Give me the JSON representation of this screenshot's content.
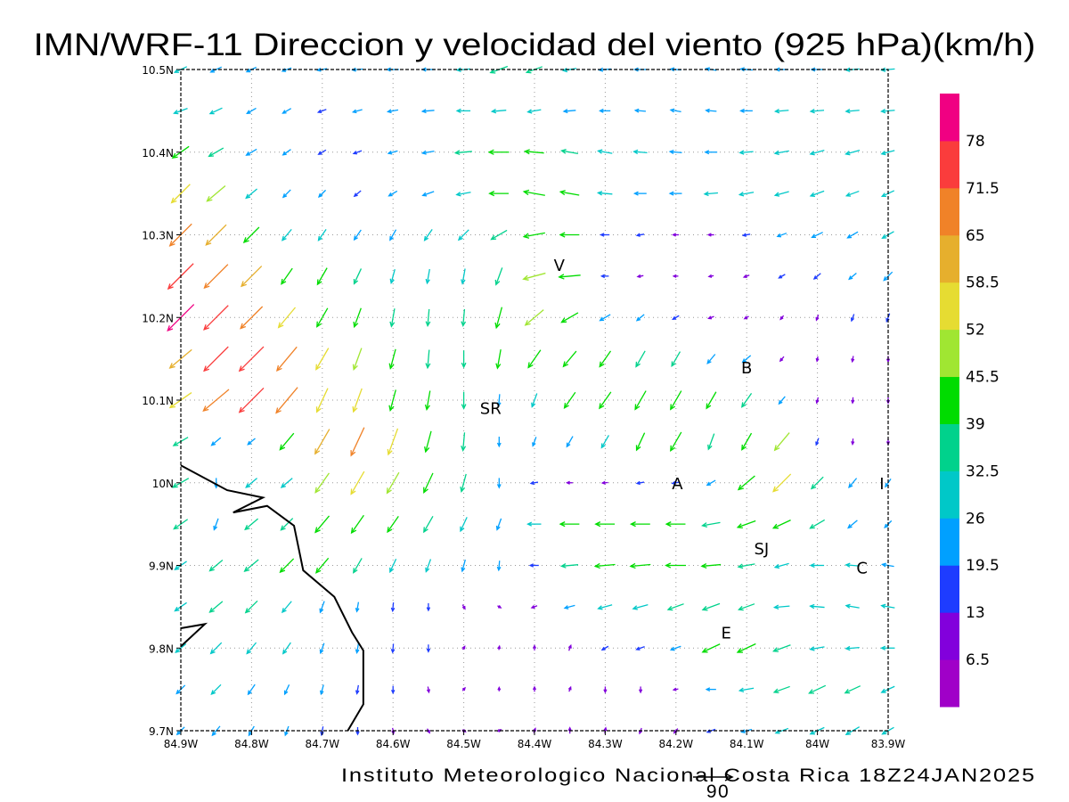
{
  "chart_data": {
    "type": "vector-field",
    "title": "IMN/WRF-11 Direccion y velocidad del viento (925 hPa)(km/h)",
    "credit": "Instituto Meteorologico Nacional Costa Rica  18Z24JAN2025",
    "reference_vector": {
      "value": 90,
      "label": "90"
    },
    "units": "km/h",
    "xlim": [
      -84.9,
      -83.9
    ],
    "ylim": [
      9.7,
      10.5
    ],
    "grid": true,
    "x_ticks": [
      {
        "value": -84.9,
        "label": "84.9W"
      },
      {
        "value": -84.8,
        "label": "84.8W"
      },
      {
        "value": -84.7,
        "label": "84.7W"
      },
      {
        "value": -84.6,
        "label": "84.6W"
      },
      {
        "value": -84.5,
        "label": "84.5W"
      },
      {
        "value": -84.4,
        "label": "84.4W"
      },
      {
        "value": -84.3,
        "label": "84.3W"
      },
      {
        "value": -84.2,
        "label": "84.2W"
      },
      {
        "value": -84.1,
        "label": "84.1W"
      },
      {
        "value": -84.0,
        "label": "84W"
      },
      {
        "value": -83.9,
        "label": "83.9W"
      }
    ],
    "y_ticks": [
      {
        "value": 10.5,
        "label": "10.5N"
      },
      {
        "value": 10.4,
        "label": "10.4N"
      },
      {
        "value": 10.3,
        "label": "10.3N"
      },
      {
        "value": 10.2,
        "label": "10.2N"
      },
      {
        "value": 10.1,
        "label": "10.1N"
      },
      {
        "value": 10.0,
        "label": "10N"
      },
      {
        "value": 9.9,
        "label": "9.9N"
      },
      {
        "value": 9.8,
        "label": "9.8N"
      },
      {
        "value": 9.7,
        "label": "9.7N"
      }
    ],
    "colorbar": {
      "colors": [
        "#a000c8",
        "#8200dc",
        "#1e3cff",
        "#00a0ff",
        "#00c8c8",
        "#00d28c",
        "#00dc00",
        "#a0e632",
        "#e6dc32",
        "#e6af2d",
        "#f08228",
        "#fa3c3c",
        "#f00082"
      ],
      "levels": [
        "6.5",
        "13",
        "19.5",
        "26",
        "32.5",
        "39",
        "45.5",
        "52",
        "58.5",
        "65",
        "71.5",
        "78"
      ]
    },
    "places": [
      {
        "label": "V",
        "lon": -84.365,
        "lat": 10.264
      },
      {
        "label": "SR",
        "lon": -84.462,
        "lat": 10.091
      },
      {
        "label": "B",
        "lon": -84.1,
        "lat": 10.14
      },
      {
        "label": "A",
        "lon": -84.198,
        "lat": 10.0
      },
      {
        "label": "I",
        "lon": -83.909,
        "lat": 10.0
      },
      {
        "label": "SJ",
        "lon": -84.079,
        "lat": 9.921
      },
      {
        "label": "C",
        "lon": -83.937,
        "lat": 9.898
      },
      {
        "label": "E",
        "lon": -84.129,
        "lat": 9.819
      }
    ],
    "coastline": [
      [
        [
          -84.9,
          10.021
        ],
        [
          -84.8345,
          9.991
        ],
        [
          -84.784,
          9.982
        ],
        [
          -84.826,
          9.964
        ],
        [
          -84.778,
          9.972
        ],
        [
          -84.74,
          9.948
        ],
        [
          -84.727,
          9.894
        ],
        [
          -84.683,
          9.862
        ],
        [
          -84.658,
          9.819
        ],
        [
          -84.642,
          9.797
        ],
        [
          -84.642,
          9.732
        ],
        [
          -84.664,
          9.7
        ]
      ],
      [
        [
          -84.9,
          9.824
        ],
        [
          -84.866,
          9.829
        ],
        [
          -84.9,
          9.802
        ]
      ]
    ],
    "field": {
      "lon_start": -84.9,
      "lon_step": 0.05,
      "lats": [
        10.5,
        10.45,
        10.4,
        10.35,
        10.3,
        10.25,
        10.2,
        10.15,
        10.1,
        10.05,
        10.0,
        9.95,
        9.9,
        9.85,
        9.8,
        9.75,
        9.7
      ],
      "speed": [
        [
          28,
          25,
          22,
          20,
          20,
          22,
          25,
          25,
          28,
          38,
          35,
          28,
          25,
          25,
          22,
          22,
          25,
          25,
          25,
          28,
          28
        ],
        [
          30,
          28,
          22,
          20,
          18,
          20,
          22,
          25,
          28,
          30,
          28,
          25,
          22,
          22,
          22,
          22,
          25,
          28,
          28,
          28,
          28
        ],
        [
          42,
          35,
          25,
          20,
          18,
          18,
          20,
          25,
          35,
          42,
          40,
          35,
          30,
          28,
          25,
          25,
          28,
          30,
          30,
          30,
          28
        ],
        [
          55,
          50,
          30,
          22,
          20,
          18,
          20,
          25,
          30,
          40,
          45,
          40,
          30,
          25,
          25,
          28,
          30,
          30,
          30,
          28,
          28
        ],
        [
          65,
          60,
          45,
          30,
          28,
          25,
          25,
          28,
          30,
          38,
          45,
          40,
          18,
          15,
          12,
          12,
          15,
          20,
          25,
          25,
          28
        ],
        [
          75,
          70,
          60,
          40,
          40,
          35,
          30,
          30,
          32,
          38,
          48,
          45,
          15,
          12,
          10,
          10,
          12,
          15,
          18,
          20,
          25
        ],
        [
          78,
          72,
          65,
          55,
          45,
          42,
          38,
          35,
          35,
          45,
          50,
          40,
          25,
          20,
          15,
          12,
          10,
          10,
          12,
          15,
          18
        ],
        [
          60,
          72,
          72,
          65,
          52,
          48,
          42,
          38,
          35,
          40,
          45,
          42,
          40,
          38,
          35,
          25,
          22,
          12,
          10,
          12,
          12
        ],
        [
          55,
          70,
          72,
          70,
          55,
          52,
          45,
          40,
          35,
          25,
          30,
          40,
          42,
          45,
          45,
          40,
          35,
          20,
          12,
          12,
          12
        ],
        [
          35,
          25,
          20,
          45,
          60,
          65,
          58,
          45,
          38,
          20,
          20,
          25,
          30,
          40,
          45,
          35,
          40,
          48,
          15,
          12,
          12
        ],
        [
          38,
          20,
          30,
          30,
          50,
          55,
          50,
          45,
          38,
          20,
          15,
          12,
          12,
          15,
          15,
          20,
          45,
          52,
          35,
          25,
          20
        ],
        [
          35,
          25,
          35,
          35,
          45,
          45,
          40,
          38,
          32,
          25,
          28,
          40,
          40,
          40,
          40,
          38,
          40,
          40,
          35,
          25,
          20
        ],
        [
          30,
          35,
          38,
          40,
          40,
          35,
          30,
          28,
          25,
          20,
          18,
          35,
          42,
          42,
          42,
          40,
          35,
          30,
          28,
          28,
          25
        ],
        [
          30,
          35,
          35,
          30,
          25,
          20,
          18,
          15,
          10,
          8,
          12,
          22,
          30,
          32,
          35,
          38,
          35,
          32,
          30,
          28,
          28
        ],
        [
          28,
          32,
          30,
          28,
          22,
          20,
          18,
          15,
          8,
          8,
          10,
          12,
          15,
          18,
          22,
          40,
          42,
          38,
          30,
          28,
          28
        ],
        [
          25,
          28,
          25,
          22,
          20,
          18,
          15,
          12,
          8,
          8,
          10,
          10,
          12,
          12,
          10,
          20,
          30,
          35,
          38,
          35,
          30
        ],
        [
          22,
          25,
          22,
          20,
          18,
          15,
          12,
          10,
          8,
          8,
          10,
          12,
          12,
          12,
          12,
          18,
          22,
          28,
          32,
          32,
          28
        ]
      ],
      "direction_to_deg": [
        [
          245,
          245,
          245,
          250,
          260,
          265,
          270,
          270,
          265,
          250,
          250,
          260,
          265,
          270,
          275,
          280,
          275,
          270,
          270,
          265,
          265
        ],
        [
          250,
          245,
          240,
          240,
          250,
          255,
          260,
          265,
          270,
          265,
          260,
          265,
          270,
          275,
          280,
          275,
          270,
          265,
          265,
          265,
          265
        ],
        [
          235,
          240,
          240,
          235,
          240,
          250,
          255,
          260,
          265,
          270,
          275,
          280,
          280,
          275,
          275,
          270,
          265,
          260,
          255,
          255,
          255
        ],
        [
          225,
          230,
          230,
          225,
          225,
          230,
          240,
          250,
          260,
          270,
          280,
          280,
          275,
          270,
          270,
          265,
          260,
          255,
          250,
          250,
          245
        ],
        [
          225,
          225,
          225,
          220,
          215,
          215,
          210,
          215,
          225,
          240,
          260,
          270,
          270,
          260,
          270,
          270,
          260,
          250,
          245,
          240,
          240
        ],
        [
          225,
          225,
          225,
          215,
          210,
          205,
          195,
          190,
          190,
          200,
          255,
          265,
          270,
          260,
          270,
          260,
          250,
          240,
          230,
          230,
          225
        ],
        [
          225,
          225,
          225,
          220,
          210,
          200,
          190,
          185,
          185,
          195,
          230,
          240,
          240,
          230,
          240,
          250,
          240,
          220,
          200,
          200,
          200
        ],
        [
          230,
          225,
          225,
          220,
          210,
          200,
          195,
          185,
          180,
          190,
          215,
          220,
          215,
          210,
          210,
          220,
          230,
          220,
          190,
          190,
          180
        ],
        [
          235,
          230,
          225,
          220,
          205,
          200,
          195,
          190,
          180,
          185,
          200,
          215,
          215,
          210,
          210,
          210,
          215,
          220,
          195,
          185,
          180
        ],
        [
          240,
          230,
          230,
          220,
          210,
          205,
          200,
          195,
          185,
          180,
          200,
          210,
          210,
          205,
          210,
          200,
          210,
          220,
          200,
          185,
          180
        ],
        [
          240,
          180,
          230,
          230,
          215,
          210,
          210,
          205,
          195,
          180,
          260,
          270,
          265,
          260,
          260,
          240,
          230,
          225,
          225,
          220,
          215
        ],
        [
          235,
          200,
          230,
          225,
          220,
          215,
          215,
          210,
          205,
          200,
          270,
          270,
          270,
          270,
          270,
          260,
          250,
          245,
          240,
          230,
          225
        ],
        [
          235,
          230,
          230,
          225,
          220,
          210,
          205,
          200,
          195,
          185,
          270,
          265,
          265,
          265,
          270,
          265,
          260,
          255,
          270,
          275,
          280
        ],
        [
          235,
          230,
          225,
          220,
          200,
          190,
          185,
          180,
          150,
          120,
          250,
          255,
          255,
          255,
          250,
          250,
          250,
          265,
          275,
          280,
          280
        ],
        [
          230,
          225,
          220,
          215,
          200,
          190,
          185,
          180,
          30,
          10,
          0,
          20,
          240,
          250,
          250,
          245,
          245,
          250,
          260,
          265,
          270
        ],
        [
          225,
          225,
          215,
          205,
          195,
          190,
          180,
          170,
          40,
          0,
          0,
          20,
          180,
          180,
          260,
          270,
          260,
          250,
          245,
          245,
          245
        ],
        [
          225,
          220,
          210,
          200,
          190,
          180,
          170,
          150,
          120,
          60,
          20,
          0,
          10,
          200,
          220,
          250,
          255,
          250,
          245,
          240,
          240
        ]
      ]
    }
  }
}
